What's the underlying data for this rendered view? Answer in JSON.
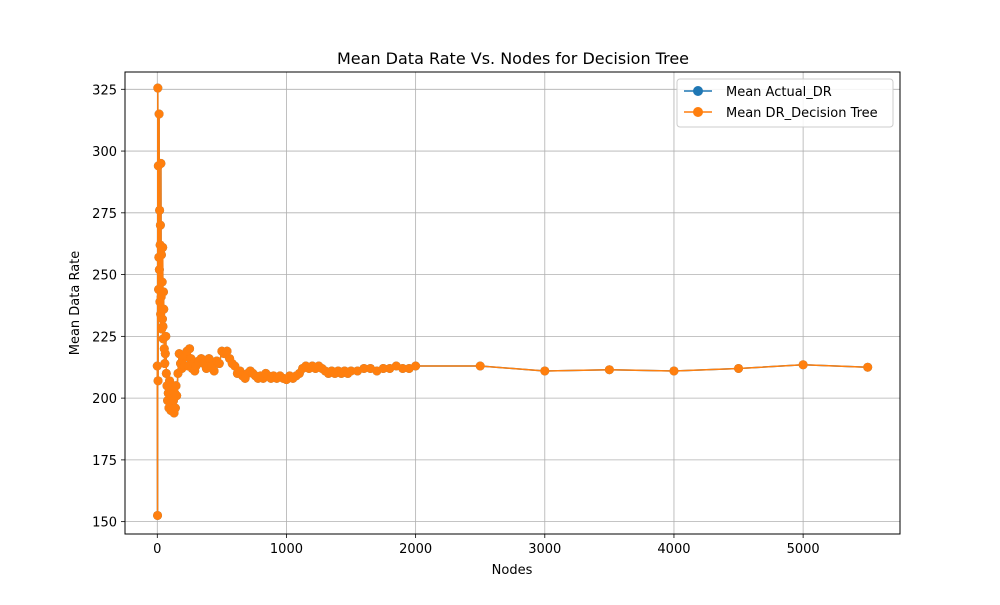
{
  "chart_data": {
    "type": "line",
    "title": "Mean Data Rate Vs. Nodes for Decision Tree",
    "xlabel": "Nodes",
    "ylabel": "Mean Data Rate",
    "xlim": [
      -250,
      5750
    ],
    "ylim": [
      145,
      332
    ],
    "xticks": [
      0,
      1000,
      2000,
      3000,
      4000,
      5000
    ],
    "yticks": [
      150,
      175,
      200,
      225,
      250,
      275,
      300,
      325
    ],
    "grid": true,
    "legend_position": "top-right",
    "x": [
      0,
      2,
      4,
      6,
      8,
      10,
      12,
      14,
      16,
      18,
      20,
      22,
      24,
      26,
      28,
      30,
      32,
      34,
      36,
      38,
      40,
      42,
      44,
      46,
      48,
      50,
      54,
      58,
      62,
      66,
      70,
      75,
      80,
      85,
      90,
      95,
      100,
      105,
      110,
      115,
      120,
      125,
      130,
      135,
      140,
      145,
      150,
      160,
      170,
      180,
      190,
      200,
      210,
      220,
      230,
      240,
      250,
      260,
      270,
      280,
      290,
      300,
      320,
      340,
      360,
      380,
      400,
      420,
      440,
      460,
      480,
      500,
      520,
      540,
      560,
      580,
      600,
      620,
      640,
      660,
      680,
      700,
      720,
      740,
      760,
      780,
      800,
      820,
      840,
      860,
      880,
      900,
      925,
      950,
      975,
      1000,
      1025,
      1050,
      1075,
      1100,
      1125,
      1150,
      1175,
      1200,
      1225,
      1250,
      1275,
      1300,
      1325,
      1350,
      1375,
      1400,
      1425,
      1450,
      1475,
      1500,
      1550,
      1600,
      1650,
      1700,
      1750,
      1800,
      1850,
      1900,
      1950,
      2000,
      2500,
      3000,
      3500,
      4000,
      4500,
      5000,
      5500
    ],
    "series": [
      {
        "name": "Mean Actual_DR",
        "color": "#1f77b4",
        "values": [
          213,
          152.5,
          325.5,
          207,
          294,
          244,
          257,
          315,
          252,
          276,
          239,
          262,
          270,
          234,
          295,
          241,
          258,
          228,
          236,
          247,
          232,
          261,
          229,
          224,
          243,
          236,
          220,
          214,
          218,
          225,
          210,
          205,
          199,
          202,
          196,
          207,
          200,
          195,
          203,
          198,
          205,
          199,
          194,
          202,
          196,
          205,
          201,
          210,
          218,
          214,
          212,
          216,
          213,
          217,
          219,
          213,
          220,
          216,
          212,
          214,
          211,
          213,
          215,
          216,
          214,
          212,
          216,
          213,
          211,
          215,
          214,
          219,
          218,
          219,
          216,
          214,
          213,
          210,
          211,
          209,
          208,
          210,
          211,
          210,
          209,
          208,
          209,
          208,
          210,
          209,
          208,
          209,
          208,
          209,
          208,
          207.5,
          209,
          208,
          209,
          210,
          212,
          213,
          212,
          213,
          212,
          213,
          212,
          211,
          210,
          211,
          210,
          211,
          210,
          211,
          210,
          211,
          211,
          212,
          212,
          211,
          212,
          212,
          213,
          212,
          212,
          213,
          213,
          211,
          211.5,
          211,
          212,
          213.5,
          212.5
        ]
      },
      {
        "name": "Mean DR_Decision Tree",
        "color": "#ff7f0e",
        "values": [
          213,
          152.5,
          325.5,
          207,
          294,
          244,
          257,
          315,
          252,
          276,
          239,
          262,
          270,
          234,
          295,
          241,
          258,
          228,
          236,
          247,
          232,
          261,
          229,
          224,
          243,
          236,
          220,
          214,
          218,
          225,
          210,
          205,
          199,
          202,
          196,
          207,
          200,
          195,
          203,
          198,
          205,
          199,
          194,
          202,
          196,
          205,
          201,
          210,
          218,
          214,
          212,
          216,
          213,
          217,
          219,
          213,
          220,
          216,
          212,
          214,
          211,
          213,
          215,
          216,
          214,
          212,
          216,
          213,
          211,
          215,
          214,
          219,
          218,
          219,
          216,
          214,
          213,
          210,
          211,
          209,
          208,
          210,
          211,
          210,
          209,
          208,
          209,
          208,
          210,
          209,
          208,
          209,
          208,
          209,
          208,
          207.5,
          209,
          208,
          209,
          210,
          212,
          213,
          212,
          213,
          212,
          213,
          212,
          211,
          210,
          211,
          210,
          211,
          210,
          211,
          210,
          211,
          211,
          212,
          212,
          211,
          212,
          212,
          213,
          212,
          212,
          213,
          213,
          211,
          211.5,
          211,
          212,
          213.5,
          212.5
        ]
      }
    ]
  }
}
